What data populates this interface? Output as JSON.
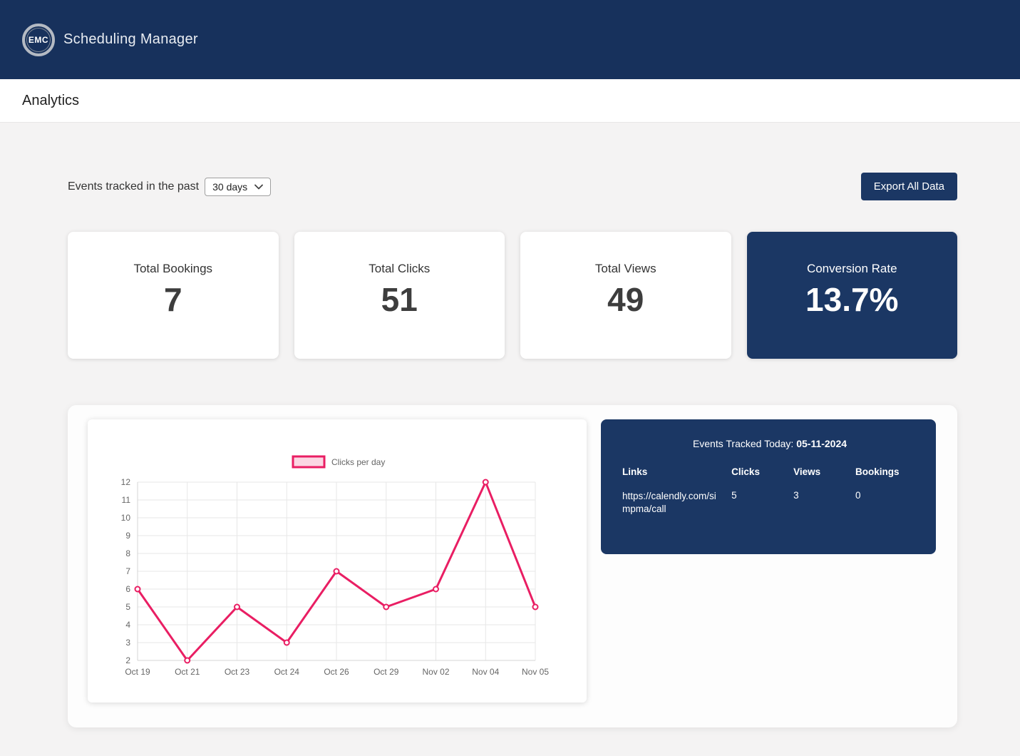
{
  "header": {
    "logo_text": "EMC",
    "app_title": "Scheduling Manager"
  },
  "page": {
    "title": "Analytics"
  },
  "controls": {
    "filter_label": "Events tracked in the past",
    "filter_value": "30 days",
    "export_label": "Export All Data"
  },
  "stats": [
    {
      "label": "Total Bookings",
      "value": "7"
    },
    {
      "label": "Total Clicks",
      "value": "51"
    },
    {
      "label": "Total Views",
      "value": "49"
    },
    {
      "label": "Conversion Rate",
      "value": "13.7%"
    }
  ],
  "chart_data": {
    "type": "line",
    "legend": "Clicks per day",
    "categories": [
      "Oct 19",
      "Oct 21",
      "Oct 23",
      "Oct 24",
      "Oct 26",
      "Oct 29",
      "Nov 02",
      "Nov 04",
      "Nov 05"
    ],
    "values": [
      6,
      2,
      5,
      3,
      7,
      5,
      6,
      12,
      5
    ],
    "ylim": [
      2,
      12
    ],
    "ytick_step": 1,
    "line_color": "#e91e63",
    "grid": true,
    "legend_position": "top"
  },
  "today_panel": {
    "heading_prefix": "Events Tracked Today: ",
    "date": "05-11-2024",
    "columns": [
      "Links",
      "Clicks",
      "Views",
      "Bookings"
    ],
    "rows": [
      {
        "link": "https://calendly.com/simpma/call",
        "clicks": "5",
        "views": "3",
        "bookings": "0"
      }
    ]
  },
  "colors": {
    "navy": "#1b3764",
    "header_navy": "#17315c",
    "accent_pink": "#e91e63",
    "page_background": "#f4f3f3"
  }
}
